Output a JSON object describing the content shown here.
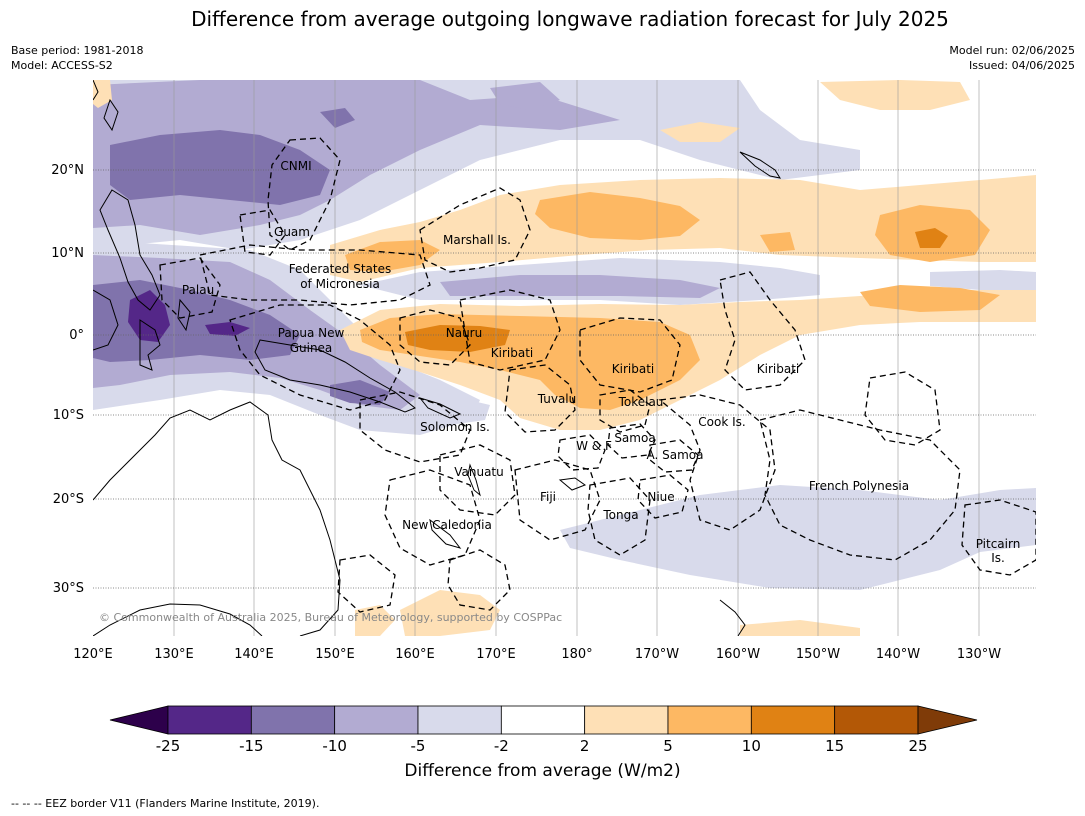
{
  "title": "Difference from average outgoing longwave radiation forecast for July 2025",
  "meta_left": {
    "base_period": "Base period: 1981-2018",
    "model": "Model: ACCESS-S2"
  },
  "meta_right": {
    "model_run": "Model run: 02/06/2025",
    "issued": "Issued: 04/06/2025"
  },
  "map": {
    "lon_labels": [
      "120°E",
      "130°E",
      "140°E",
      "150°E",
      "160°E",
      "170°E",
      "180°",
      "170°W",
      "160°W",
      "150°W",
      "140°W",
      "130°W"
    ],
    "lat_labels": [
      "20°N",
      "10°N",
      "0°",
      "10°S",
      "20°S",
      "30°S"
    ],
    "places": {
      "cnmi": "CNMI",
      "guam": "Guam",
      "marshall": "Marshall Is.",
      "fsm_1": "Federated States",
      "fsm_2": "of Micronesia",
      "palau": "Palau",
      "png_1": "Papua New",
      "png_2": "Guinea",
      "nauru": "Nauru",
      "kiribati_w": "Kiribati",
      "kiribati_c": "Kiribati",
      "kiribati_e": "Kiribati",
      "tuvalu": "Tuvalu",
      "tokelau": "Tokelau",
      "cook": "Cook Is.",
      "solomon": "Solomon Is.",
      "wf": "W & F",
      "samoa": "Samoa",
      "asamoa": "A. Samoa",
      "vanuatu": "Vanuatu",
      "fiji": "Fiji",
      "niue": "Niue",
      "tonga": "Tonga",
      "french_polynesia": "French Polynesia",
      "pitcairn_1": "Pitcairn",
      "pitcairn_2": "Is.",
      "new_caledonia": "New Caledonia"
    },
    "copyright": "© Commonwealth of Australia 2025, Bureau of Meteorology, supported by COSPPac"
  },
  "colorbar": {
    "ticks": [
      "-25",
      "-15",
      "-10",
      "-5",
      "-2",
      "2",
      "5",
      "10",
      "15",
      "25"
    ],
    "colors": [
      "#2d004b",
      "#542788",
      "#8073ac",
      "#b2abd2",
      "#d8daeb",
      "#ffffff",
      "#fee0b6",
      "#fdb863",
      "#e08214",
      "#b35806",
      "#7f3b08"
    ],
    "title": "Difference from average (W/m2)"
  },
  "footnote": "--  --  -- EEZ border V11 (Flanders Marine Institute, 2019)."
}
